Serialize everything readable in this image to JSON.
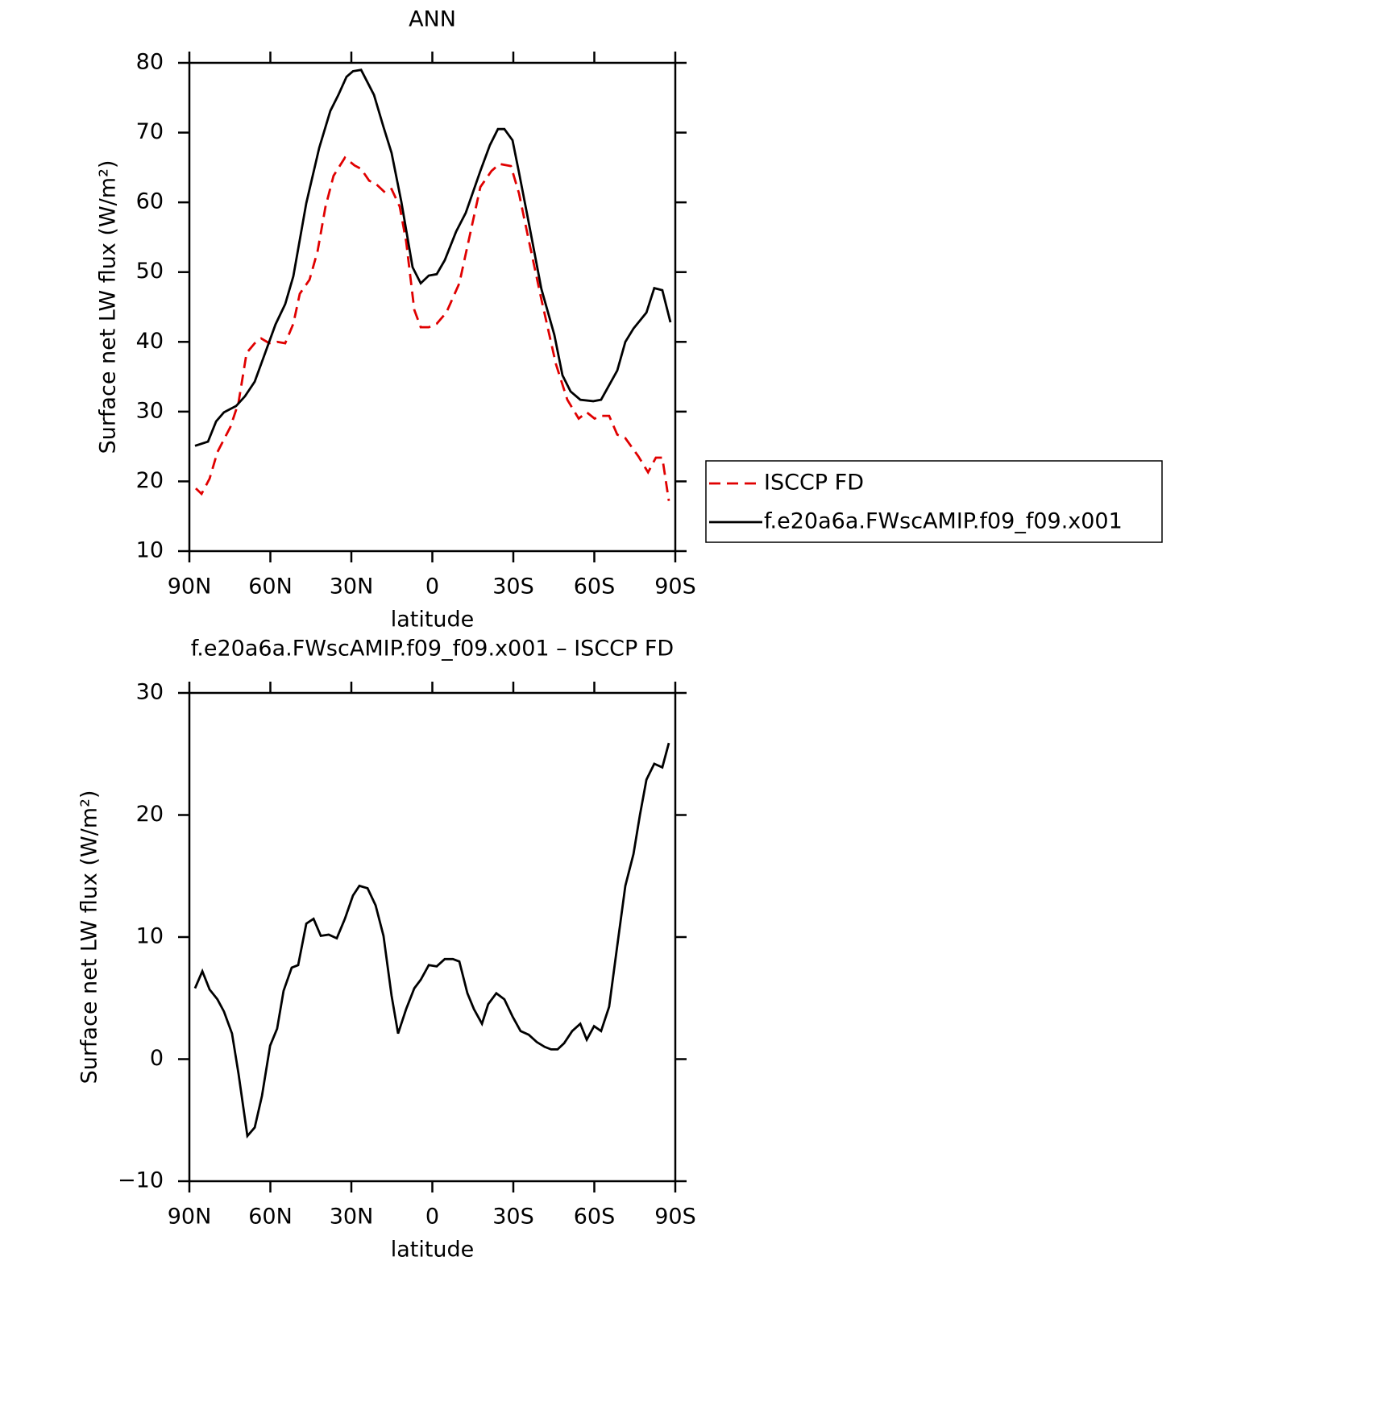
{
  "chart_data": [
    {
      "type": "line",
      "title": "ANN",
      "xlabel": "latitude",
      "ylabel": "Surface net LW flux (W/m²)",
      "xlim": [
        90,
        -90
      ],
      "xticks": [
        {
          "value": 90,
          "label": "90N"
        },
        {
          "value": 60,
          "label": "60N"
        },
        {
          "value": 30,
          "label": "30N"
        },
        0,
        {
          "value": -30,
          "label": "30S"
        },
        {
          "value": -60,
          "label": "60S"
        },
        {
          "value": -90,
          "label": "90S"
        }
      ],
      "ylim": [
        10,
        80
      ],
      "yticks": [
        10,
        20,
        30,
        40,
        50,
        60,
        70,
        80
      ],
      "legend": "right",
      "series": [
        {
          "name": "ISCCP FD",
          "color": "#e00000",
          "dash": true,
          "x": [
            87.6,
            85.5,
            82.5,
            79.6,
            74.8,
            71.8,
            68.8,
            65.8,
            63.4,
            60.4,
            57.5,
            54.5,
            51.5,
            49.1,
            45.5,
            42.5,
            39.6,
            36.6,
            32.4,
            28.8,
            26.4,
            23.4,
            21.0,
            17.5,
            15.1,
            12.1,
            9.7,
            6.7,
            4.3,
            1.3,
            -1.6,
            -5.2,
            -10.0,
            -13.6,
            -17.8,
            -21.9,
            -24.9,
            -29.1,
            -32.1,
            -35.7,
            -40.4,
            -45.8,
            -50.0,
            -54.2,
            -57.2,
            -60.1,
            -62.5,
            -65.5,
            -68.5,
            -71.5,
            -76.3,
            -79.9,
            -82.8,
            -85.2,
            -87.6
          ],
          "values": [
            19.0,
            18.2,
            20.4,
            24.2,
            27.8,
            31.3,
            38.4,
            39.8,
            40.5,
            39.8,
            40.0,
            39.8,
            42.6,
            46.9,
            48.9,
            53.0,
            59.3,
            63.8,
            66.4,
            65.3,
            64.8,
            63.1,
            62.7,
            61.4,
            61.9,
            59.4,
            54.4,
            44.6,
            42.1,
            42.1,
            42.6,
            44.2,
            48.4,
            54.8,
            62.2,
            64.5,
            65.5,
            65.2,
            61.3,
            54.6,
            46.1,
            36.8,
            31.7,
            29.0,
            29.9,
            29.0,
            29.4,
            29.4,
            26.7,
            26.2,
            23.6,
            21.3,
            23.4,
            23.4,
            17.2
          ]
        },
        {
          "name": "f.e20a6a.FWscAMIP.f09_f09.x001",
          "color": "#000000",
          "dash": false,
          "x": [
            87.9,
            83.1,
            80.1,
            77.2,
            72.7,
            69.4,
            65.8,
            62.2,
            58.1,
            54.5,
            51.5,
            46.7,
            41.9,
            37.8,
            34.8,
            31.8,
            29.4,
            26.4,
            21.6,
            18.1,
            15.1,
            11.5,
            7.3,
            4.3,
            1.3,
            -1.6,
            -4.6,
            -8.8,
            -12.4,
            -17.8,
            -21.3,
            -24.3,
            -26.7,
            -29.7,
            -32.1,
            -35.7,
            -40.4,
            -45.2,
            -48.2,
            -51.2,
            -54.8,
            -59.6,
            -62.5,
            -68.5,
            -71.5,
            -74.5,
            -79.3,
            -82.2,
            -85.2,
            -88.2
          ],
          "values": [
            25.1,
            25.7,
            28.6,
            29.9,
            30.8,
            32.2,
            34.3,
            38.1,
            42.5,
            45.4,
            49.4,
            59.9,
            67.8,
            73.1,
            75.4,
            78.0,
            78.8,
            79.0,
            75.4,
            70.8,
            67.1,
            60.1,
            50.7,
            48.4,
            49.5,
            49.7,
            51.7,
            55.8,
            58.5,
            64.5,
            68.2,
            70.5,
            70.5,
            68.9,
            64.3,
            57.1,
            47.6,
            41.0,
            35.2,
            32.9,
            31.7,
            31.5,
            31.7,
            35.9,
            40.0,
            41.9,
            44.2,
            47.7,
            47.4,
            42.8
          ]
        }
      ]
    },
    {
      "type": "line",
      "title": "f.e20a6a.FWscAMIP.f09_f09.x001 – ISCCP FD",
      "xlabel": "latitude",
      "ylabel": "Surface net LW flux (W/m²)",
      "xlim": [
        90,
        -90
      ],
      "xticks": [
        {
          "value": 90,
          "label": "90N"
        },
        {
          "value": 60,
          "label": "60N"
        },
        {
          "value": 30,
          "label": "30N"
        },
        0,
        {
          "value": -30,
          "label": "30S"
        },
        {
          "value": -60,
          "label": "60S"
        },
        {
          "value": -90,
          "label": "90S"
        }
      ],
      "ylim": [
        -10,
        30
      ],
      "yticks": [
        {
          "value": -10,
          "label": "−10"
        },
        0,
        10,
        20,
        30
      ],
      "color": "#000000",
      "x": [
        87.9,
        85.2,
        82.5,
        79.6,
        77.2,
        74.2,
        71.8,
        68.5,
        65.8,
        63.1,
        60.1,
        57.5,
        55.1,
        52.1,
        49.7,
        46.7,
        44.0,
        41.3,
        38.4,
        35.4,
        32.4,
        29.4,
        27.0,
        24.0,
        21.0,
        18.1,
        15.1,
        12.7,
        9.7,
        6.7,
        4.3,
        1.3,
        -1.6,
        -4.6,
        -7.6,
        -10.0,
        -13.0,
        -15.4,
        -18.4,
        -20.7,
        -23.7,
        -26.7,
        -29.7,
        -32.7,
        -35.7,
        -38.7,
        -41.6,
        -44.0,
        -46.4,
        -48.8,
        -51.8,
        -54.8,
        -57.2,
        -59.9,
        -62.5,
        -65.5,
        -68.5,
        -71.5,
        -74.5,
        -76.9,
        -79.3,
        -82.2,
        -85.2,
        -87.6
      ],
      "values": [
        5.8,
        7.2,
        5.7,
        4.9,
        3.9,
        2.1,
        -1.2,
        -6.3,
        -5.6,
        -3.0,
        1.1,
        2.5,
        5.6,
        7.5,
        7.7,
        11.1,
        11.5,
        10.1,
        10.2,
        9.9,
        11.5,
        13.4,
        14.2,
        14.0,
        12.6,
        10.1,
        5.2,
        2.1,
        4.1,
        5.8,
        6.5,
        7.7,
        7.6,
        8.2,
        8.2,
        8.0,
        5.4,
        4.1,
        2.9,
        4.5,
        5.4,
        4.9,
        3.5,
        2.3,
        2.0,
        1.4,
        1.0,
        0.8,
        0.8,
        1.3,
        2.3,
        2.9,
        1.6,
        2.7,
        2.3,
        4.3,
        9.3,
        14.2,
        16.8,
        20.0,
        22.9,
        24.2,
        23.9,
        25.9
      ]
    }
  ]
}
